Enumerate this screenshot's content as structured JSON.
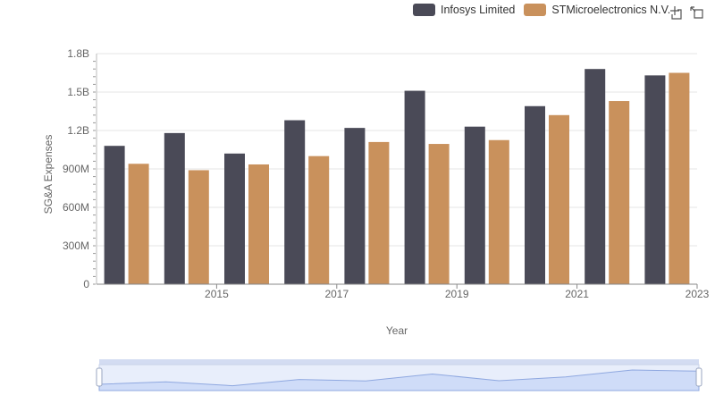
{
  "legend": {
    "items": [
      {
        "label": "Infosys Limited",
        "color": "#4a4a57"
      },
      {
        "label": "STMicroelectronics N.V.",
        "color": "#c9915c"
      }
    ]
  },
  "toolbox": {
    "icons": [
      "crosshair-zoom-icon",
      "restore-icon"
    ]
  },
  "chart_data": {
    "type": "bar",
    "title": "",
    "xlabel": "Year",
    "ylabel": "SG&A Expenses",
    "ylim": [
      0,
      1800000000
    ],
    "yticks": [
      "0",
      "300M",
      "600M",
      "900M",
      "1.2B",
      "1.5B",
      "1.8B"
    ],
    "categories": [
      "2014",
      "2015",
      "2016",
      "2017",
      "2018",
      "2019",
      "2020",
      "2021",
      "2022",
      "2023"
    ],
    "xtick_labels": [
      "2015",
      "2017",
      "2019",
      "2021",
      "2023"
    ],
    "grid": true,
    "legend_position": "top-right",
    "series": [
      {
        "name": "Infosys Limited",
        "color": "#4a4a57",
        "values": [
          1080000000,
          1180000000,
          1020000000,
          1280000000,
          1220000000,
          1510000000,
          1230000000,
          1390000000,
          1680000000,
          1630000000
        ]
      },
      {
        "name": "STMicroelectronics N.V.",
        "color": "#c9915c",
        "values": [
          940000000,
          890000000,
          935000000,
          1000000000,
          1110000000,
          1095000000,
          1125000000,
          1320000000,
          1430000000,
          1650000000
        ]
      }
    ]
  }
}
